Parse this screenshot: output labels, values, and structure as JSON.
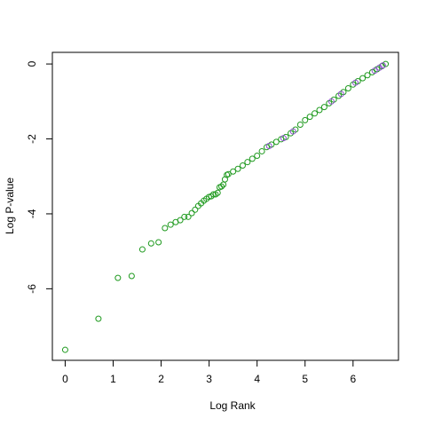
{
  "chart_data": {
    "type": "scatter",
    "xlabel": "Log Rank",
    "ylabel": "Log P-value",
    "xlim": [
      -0.267,
      6.947
    ],
    "ylim": [
      -7.91,
      0.31
    ],
    "xticks": [
      0,
      1,
      2,
      3,
      4,
      5,
      6
    ],
    "yticks": [
      -6,
      -4,
      -2,
      0
    ],
    "series": [
      {
        "name": "green",
        "color": "#1f9a1f",
        "x": [
          0,
          0.693,
          1.099,
          1.386,
          1.609,
          1.792,
          1.946,
          2.079,
          2.197,
          2.303,
          2.398,
          2.485,
          2.565,
          2.639,
          2.708,
          2.773,
          2.833,
          2.89,
          2.944,
          2.996,
          3.045,
          3.091,
          3.135,
          3.178,
          3.219,
          3.258,
          3.296,
          3.33,
          3.37,
          3.4,
          3.5,
          3.6,
          3.7,
          3.8,
          3.9,
          4.0,
          4.1,
          4.2,
          4.3,
          4.4,
          4.5,
          4.6,
          4.7,
          4.8,
          4.9,
          5.0,
          5.1,
          5.2,
          5.3,
          5.4,
          5.5,
          5.6,
          5.7,
          5.8,
          5.9,
          6.0,
          6.1,
          6.2,
          6.3,
          6.4,
          6.5,
          6.6,
          6.68
        ],
        "values": [
          -7.63,
          -6.8,
          -5.71,
          -5.66,
          -4.95,
          -4.79,
          -4.76,
          -4.38,
          -4.29,
          -4.22,
          -4.17,
          -4.08,
          -4.08,
          -3.98,
          -3.89,
          -3.79,
          -3.72,
          -3.65,
          -3.6,
          -3.55,
          -3.53,
          -3.48,
          -3.48,
          -3.44,
          -3.29,
          -3.27,
          -3.22,
          -3.08,
          -2.96,
          -2.94,
          -2.87,
          -2.8,
          -2.71,
          -2.62,
          -2.53,
          -2.45,
          -2.33,
          -2.22,
          -2.15,
          -2.08,
          -2.01,
          -1.95,
          -1.85,
          -1.75,
          -1.62,
          -1.5,
          -1.41,
          -1.32,
          -1.23,
          -1.15,
          -1.05,
          -0.95,
          -0.85,
          -0.75,
          -0.65,
          -0.55,
          -0.46,
          -0.38,
          -0.3,
          -0.22,
          -0.14,
          -0.06,
          0
        ]
      },
      {
        "name": "purple",
        "color": "#8a4fc9",
        "x": [
          4.25,
          4.55,
          4.75,
          5.55,
          5.75,
          6.05,
          6.45,
          6.55,
          6.62
        ],
        "values": [
          -2.19,
          -1.98,
          -1.8,
          -1.0,
          -0.8,
          -0.5,
          -0.18,
          -0.1,
          -0.04
        ]
      }
    ]
  }
}
